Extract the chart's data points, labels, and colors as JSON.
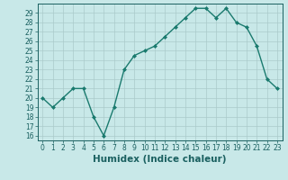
{
  "x": [
    0,
    1,
    2,
    3,
    4,
    5,
    6,
    7,
    8,
    9,
    10,
    11,
    12,
    13,
    14,
    15,
    16,
    17,
    18,
    19,
    20,
    21,
    22,
    23
  ],
  "y": [
    20,
    19,
    20,
    21,
    21,
    18,
    16,
    19,
    23,
    24.5,
    25,
    25.5,
    26.5,
    27.5,
    28.5,
    29.5,
    29.5,
    28.5,
    29.5,
    28,
    27.5,
    25.5,
    22,
    21
  ],
  "line_color": "#1a7a6e",
  "marker": "D",
  "marker_size": 2.0,
  "bg_color": "#c8e8e8",
  "grid_color": "#aacaca",
  "xlabel": "Humidex (Indice chaleur)",
  "ylim": [
    15.5,
    30
  ],
  "xlim": [
    -0.5,
    23.5
  ],
  "yticks": [
    16,
    17,
    18,
    19,
    20,
    21,
    22,
    23,
    24,
    25,
    26,
    27,
    28,
    29
  ],
  "xticks": [
    0,
    1,
    2,
    3,
    4,
    5,
    6,
    7,
    8,
    9,
    10,
    11,
    12,
    13,
    14,
    15,
    16,
    17,
    18,
    19,
    20,
    21,
    22,
    23
  ],
  "tick_color": "#1a6060",
  "tick_fontsize": 5.5,
  "xlabel_fontsize": 7.5,
  "linewidth": 1.0
}
